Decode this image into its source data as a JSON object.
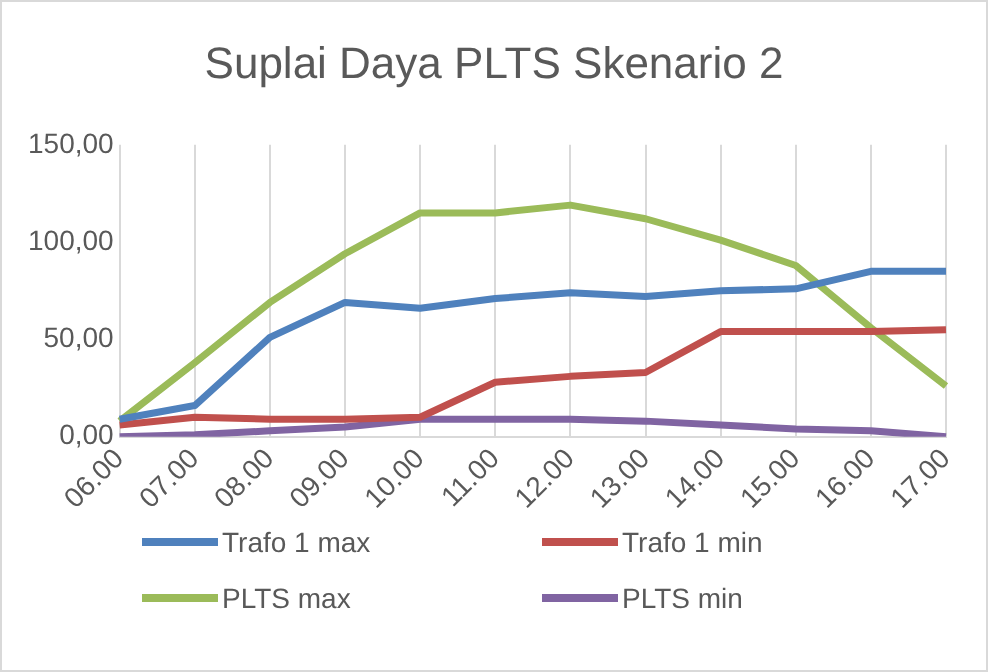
{
  "chart_data": {
    "type": "line",
    "title": "Suplai Daya PLTS Skenario 2",
    "categories": [
      "06.00",
      "07.00",
      "08.00",
      "09.00",
      "10.00",
      "11.00",
      "12.00",
      "13.00",
      "14.00",
      "15.00",
      "16.00",
      "17.00"
    ],
    "series": [
      {
        "name": "Trafo 1 max",
        "color": "#4f81bd",
        "values": [
          9,
          16,
          51,
          69,
          66,
          71,
          74,
          72,
          75,
          76,
          85,
          85
        ]
      },
      {
        "name": "Trafo 1 min",
        "color": "#c0504d",
        "values": [
          6,
          10,
          9,
          9,
          10,
          28,
          31,
          33,
          54,
          54,
          54,
          55
        ]
      },
      {
        "name": "PLTS max",
        "color": "#9bbb59",
        "values": [
          8,
          38,
          69,
          94,
          115,
          115,
          119,
          112,
          101,
          88,
          56,
          26
        ]
      },
      {
        "name": "PLTS min",
        "color": "#8064a2",
        "values": [
          0,
          1,
          3,
          5,
          9,
          9,
          9,
          8,
          6,
          4,
          3,
          0
        ]
      }
    ],
    "ylim": [
      0,
      150
    ],
    "yticks": [
      {
        "value": 0,
        "label": "0,00"
      },
      {
        "value": 50,
        "label": "50,00"
      },
      {
        "value": 100,
        "label": "100,00"
      },
      {
        "value": 150,
        "label": "150,00"
      }
    ],
    "grid": "x",
    "legend": "bottom",
    "marker": "none",
    "line_style": "solid"
  }
}
